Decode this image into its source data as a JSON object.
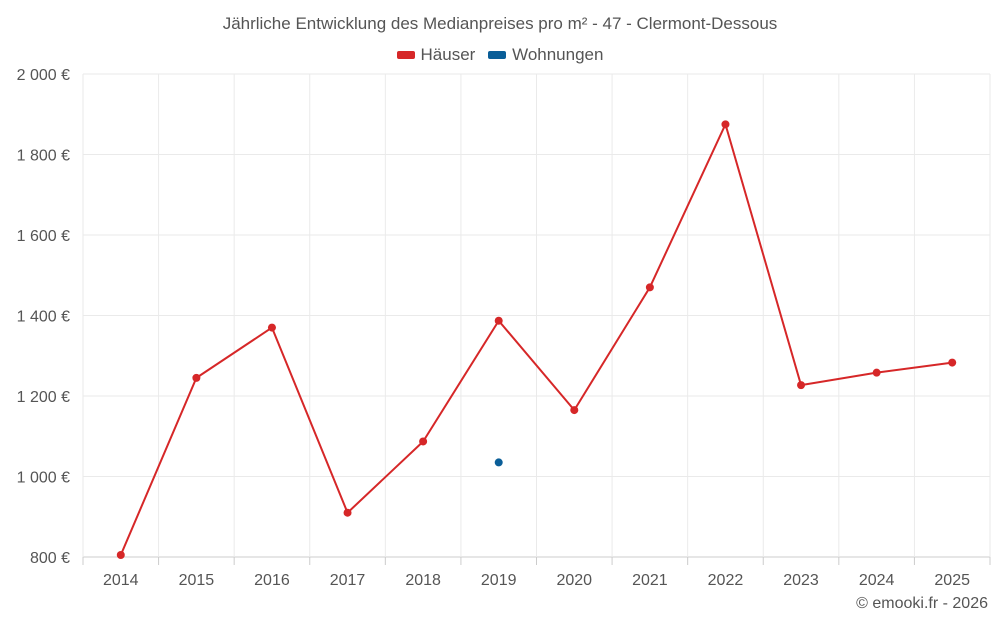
{
  "chart_data": {
    "type": "line",
    "title": "Jährliche Entwicklung des Medianpreises pro m² - 47 - Clermont-Dessous",
    "categories": [
      "2014",
      "2015",
      "2016",
      "2017",
      "2018",
      "2019",
      "2020",
      "2021",
      "2022",
      "2023",
      "2024",
      "2025"
    ],
    "series": [
      {
        "name": "Häuser",
        "color": "#d62728",
        "values": [
          805,
          1245,
          1370,
          910,
          1087,
          1387,
          1165,
          1470,
          1875,
          1227,
          1258,
          1283
        ]
      },
      {
        "name": "Wohnungen",
        "color": "#0a5e98",
        "values": [
          null,
          null,
          null,
          null,
          null,
          1035,
          null,
          null,
          null,
          null,
          null,
          null
        ]
      }
    ],
    "ylim": [
      800,
      2000
    ],
    "yticks": [
      800,
      1000,
      1200,
      1400,
      1600,
      1800,
      2000
    ],
    "ytick_labels": [
      "800 €",
      "1 000 €",
      "1 200 €",
      "1 400 €",
      "1 600 €",
      "1 800 €",
      "2 000 €"
    ],
    "xlabel": "",
    "ylabel": "",
    "grid": true,
    "legend_position": "top-center"
  },
  "credit": "© emooki.fr - 2026"
}
